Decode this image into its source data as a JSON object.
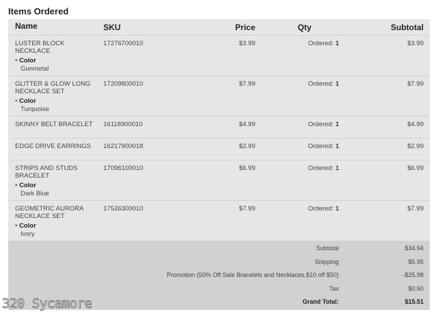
{
  "title": "Items Ordered",
  "headers": {
    "name": "Name",
    "sku": "SKU",
    "price": "Price",
    "qty": "Qty",
    "subtotal": "Subtotal"
  },
  "items": [
    {
      "name": "LUSTER BLOCK NECKLACE",
      "sku": "17276700010",
      "price": "$3.99",
      "qty_label": "Ordered:",
      "qty": "1",
      "subtotal": "$3.99",
      "option_label": "Color",
      "option_value": "Gunmetal"
    },
    {
      "name": "GLITTER & GLOW LONG NECKLACE SET",
      "sku": "17209800010",
      "price": "$7.99",
      "qty_label": "Ordered:",
      "qty": "1",
      "subtotal": "$7.99",
      "option_label": "Color",
      "option_value": "Turquoise"
    },
    {
      "name": "SKINNY BELT BRACELET",
      "sku": "16118900010",
      "price": "$4.99",
      "qty_label": "Ordered:",
      "qty": "1",
      "subtotal": "$4.99"
    },
    {
      "name": "EDGE DRIVE EARRINGS",
      "sku": "16217900018",
      "price": "$2.99",
      "qty_label": "Ordered:",
      "qty": "1",
      "subtotal": "$2.99"
    },
    {
      "name": "STRIPS AND STUDS BRACELET",
      "sku": "17096100010",
      "price": "$6.99",
      "qty_label": "Ordered:",
      "qty": "1",
      "subtotal": "$6.99",
      "option_label": "Color",
      "option_value": "Dark Blue"
    },
    {
      "name": "GEOMETRIC AURORA NECKLACE SET",
      "sku": "17526300010",
      "price": "$7.99",
      "qty_label": "Ordered:",
      "qty": "1",
      "subtotal": "$7.99",
      "option_label": "Color",
      "option_value": "Ivory"
    }
  ],
  "totals": [
    {
      "label": "Subtotal",
      "value": "$34.94"
    },
    {
      "label": "Shipping",
      "value": "$5.95"
    },
    {
      "label": "Promotion (50% Off Sale Bracelets and Necklaces,$10 off $50)",
      "value": "-$25.98"
    },
    {
      "label": "Tax",
      "value": "$0.60"
    },
    {
      "label": "Grand Total:",
      "value": "$15.51"
    }
  ],
  "watermark": "320 Sycamore"
}
